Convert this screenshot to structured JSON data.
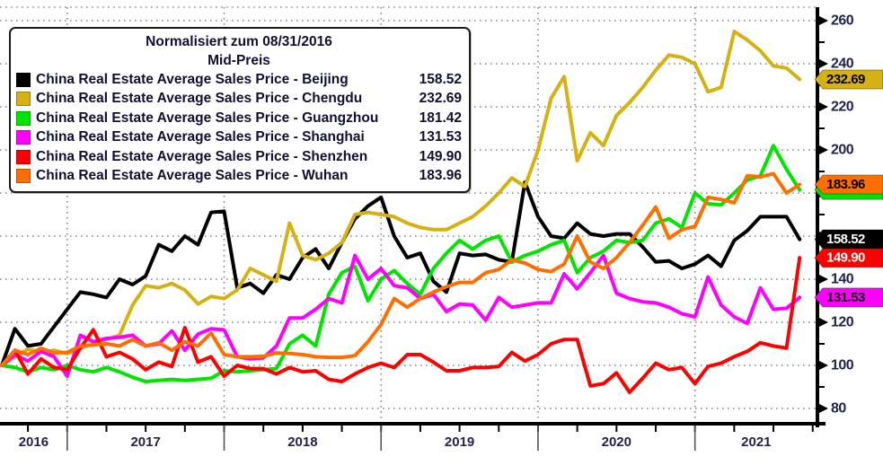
{
  "chart_data": {
    "type": "line",
    "title": "Normalisiert zum 08/31/2016",
    "subtitle": "Mid-Preis",
    "x_unit": "month",
    "x_start": "Aug 2016",
    "x_end": "Sep 2021",
    "x_years": [
      "2016",
      "2017",
      "2018",
      "2019",
      "2020",
      "2021"
    ],
    "ylim": [
      80,
      260
    ],
    "y_ticks": [
      80,
      100,
      120,
      140,
      160,
      180,
      200,
      220,
      240,
      260
    ],
    "grid": "dotted",
    "legend_position": "top-left",
    "series": [
      {
        "city": "Beijing",
        "label": "China Real Estate Average Sales Price - Beijing",
        "value_label": "158.52",
        "last_value": 158.52,
        "color": "#000000",
        "badge_text": "#ffffff",
        "values": [
          100,
          117,
          109,
          110,
          118,
          126,
          134,
          133,
          131.5,
          140,
          137.5,
          141.5,
          156,
          153,
          160,
          156,
          171,
          171.5,
          136,
          138,
          133.5,
          142,
          140,
          150,
          154,
          145,
          157,
          168,
          174,
          178,
          160,
          150,
          152,
          139,
          134,
          152,
          151,
          151.5,
          149,
          148,
          185,
          169,
          160,
          159,
          166,
          161,
          160,
          161,
          161,
          155,
          148,
          148.5,
          145,
          147,
          151,
          146,
          158,
          162.5,
          169,
          169,
          169,
          158.52
        ]
      },
      {
        "city": "Chengdu",
        "label": "China Real Estate Average Sales Price - Chengdu",
        "value_label": "232.69",
        "last_value": 232.69,
        "color": "#d6b114",
        "badge_text": "#000000",
        "values": [
          100,
          104,
          107.5,
          106,
          107,
          105.5,
          108,
          110,
          112,
          114,
          128,
          137,
          136,
          138,
          135,
          128.5,
          132,
          131,
          135,
          145,
          142,
          139,
          166,
          151,
          149,
          152,
          157,
          170,
          171,
          170,
          169,
          166,
          164,
          163,
          163,
          166,
          169,
          174,
          180,
          187,
          183,
          200,
          224,
          234,
          195,
          208,
          202,
          216,
          222,
          229,
          237,
          244,
          243,
          240,
          227,
          229,
          255,
          251,
          246,
          239,
          238,
          232.69
        ]
      },
      {
        "city": "Guangzhou",
        "label": "China Real Estate Average Sales Price - Guangzhou",
        "value_label": "181.42",
        "last_value": 181.42,
        "color": "#00e400",
        "badge_text": "#000000",
        "values": [
          100,
          99,
          97,
          99,
          98,
          100,
          98,
          97,
          99,
          97,
          94.5,
          92.5,
          93,
          93.5,
          93,
          93.5,
          94,
          97.5,
          97,
          97.5,
          98,
          98.5,
          110,
          114,
          109,
          133,
          143,
          146,
          130,
          140,
          144,
          138,
          133,
          145,
          152,
          158,
          154,
          158,
          160,
          148,
          151,
          153,
          156,
          158,
          143,
          150,
          153,
          158,
          157,
          158,
          166,
          168,
          164,
          180,
          175,
          174.5,
          180,
          186,
          188,
          202,
          191,
          181.42
        ]
      },
      {
        "city": "Shanghai",
        "label": "China Real Estate Average Sales Price - Shanghai",
        "value_label": "131.53",
        "last_value": 131.53,
        "color": "#ff00ff",
        "badge_text": "#000000",
        "values": [
          100,
          105,
          102,
          106.5,
          104,
          95,
          114,
          111,
          112.5,
          113,
          114,
          109,
          110,
          116,
          107,
          114.5,
          117,
          116.5,
          104,
          103,
          103.5,
          109,
          122,
          122,
          126,
          131,
          129,
          151,
          140,
          145,
          137,
          136,
          131,
          133,
          125,
          128.5,
          128,
          121,
          131.5,
          127,
          128,
          129,
          129,
          142.5,
          135.5,
          143,
          151,
          133.5,
          131,
          129.5,
          129,
          127,
          124,
          122.5,
          141,
          128,
          122.5,
          119.5,
          136,
          126,
          126.5,
          131.53
        ]
      },
      {
        "city": "Shenzhen",
        "label": "China Real Estate Average Sales Price - Shenzhen",
        "value_label": "149.90",
        "last_value": 149.9,
        "color": "#ff0000",
        "badge_text": "#ffffff",
        "values": [
          100,
          107,
          96,
          103,
          99,
          98,
          108,
          116.5,
          104,
          106,
          103,
          98,
          101.5,
          99.5,
          117.5,
          101.5,
          104,
          95,
          100,
          98.5,
          98.5,
          96,
          99,
          97,
          97.5,
          93.5,
          92.5,
          96,
          99,
          101,
          99,
          105,
          105,
          101.5,
          97.5,
          97.5,
          99,
          99,
          99.5,
          106,
          102,
          105,
          110,
          112,
          112,
          90.5,
          91.5,
          96.5,
          87.5,
          94,
          101,
          98,
          99,
          91.5,
          99.5,
          101,
          104,
          106.5,
          110.5,
          109,
          108,
          149.9
        ]
      },
      {
        "city": "Wuhan",
        "label": "China Real Estate Average Sales Price - Wuhan",
        "value_label": "183.96",
        "last_value": 183.96,
        "color": "#ff6f00",
        "badge_text": "#000000",
        "values": [
          100,
          107,
          105,
          107.9,
          105.8,
          106,
          109,
          109.5,
          110,
          109,
          112,
          109,
          110.5,
          107,
          111,
          109,
          115,
          105,
          104,
          104,
          104.2,
          105.8,
          105.5,
          105,
          104,
          103.7,
          103.7,
          104.5,
          111,
          119,
          131,
          127,
          131,
          134,
          136.5,
          138.5,
          138.5,
          143,
          144.5,
          149,
          147.5,
          144.5,
          143.5,
          147,
          160,
          148,
          145,
          150,
          157,
          165,
          173.5,
          159,
          163,
          164.5,
          178,
          177,
          175.5,
          188,
          187.5,
          189,
          180,
          183.96
        ]
      }
    ],
    "badges": [
      {
        "series": "Guangzhou",
        "text": "181.42",
        "partially_hidden": true
      },
      {
        "series": "Wuhan",
        "text": "183.96",
        "partially_hidden": false
      },
      {
        "series": "Chengdu",
        "text": "232.69",
        "partially_hidden": false
      },
      {
        "series": "Beijing",
        "text": "158.52",
        "partially_hidden": false
      },
      {
        "series": "Shenzhen",
        "text": "149.90",
        "partially_hidden": false
      },
      {
        "series": "Shanghai",
        "text": "131.53",
        "partially_hidden": false
      }
    ],
    "draw_order": [
      "Beijing",
      "Chengdu",
      "Guangzhou",
      "Shanghai",
      "Shenzhen",
      "Wuhan"
    ]
  },
  "colors": {
    "background": "#ffffff",
    "axis": "#000000",
    "grid": "#8a8a8a",
    "axis_text": "#22224a",
    "legend_border": "#1a1a1a"
  }
}
